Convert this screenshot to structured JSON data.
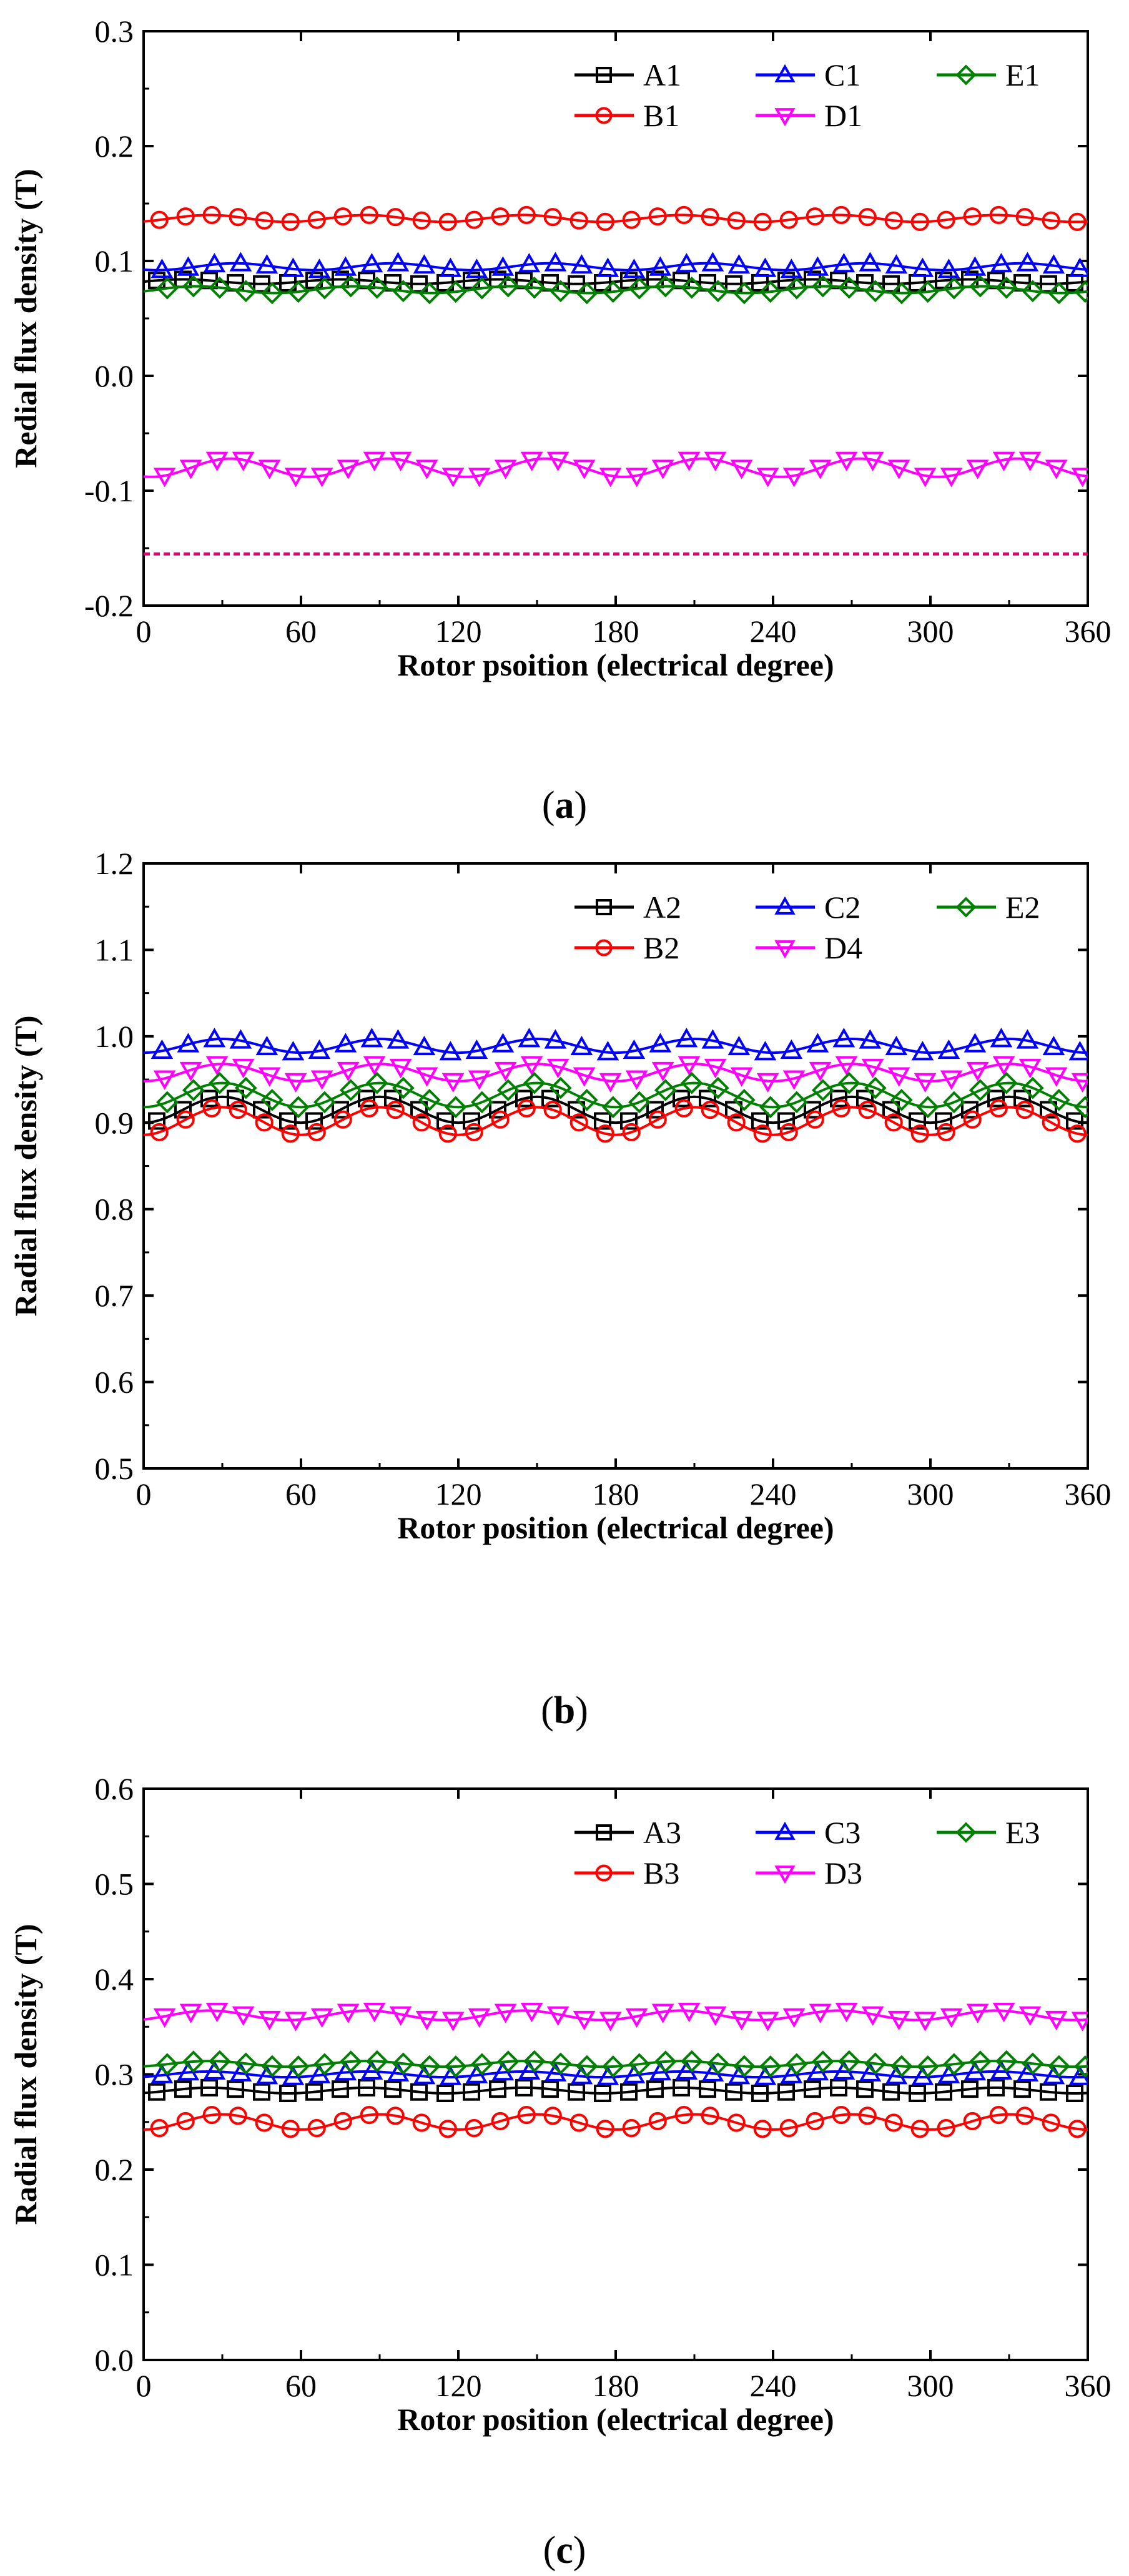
{
  "chart_data": [
    {
      "type": "line",
      "panel": "a",
      "caption_paren_open": "(",
      "caption_letter": "a",
      "caption_paren_close": ")",
      "xlabel": "Rotor psoition (electrical degree)",
      "ylabel": "Redial flux density (T)",
      "xlim": [
        0,
        360
      ],
      "ylim": [
        -0.2,
        0.3
      ],
      "xticks": [
        0,
        60,
        120,
        180,
        240,
        300,
        360
      ],
      "xtick_labels": [
        "0",
        "60",
        "120",
        "180",
        "240",
        "300",
        "360"
      ],
      "yticks": [
        -0.2,
        -0.1,
        0.0,
        0.1,
        0.2,
        0.3
      ],
      "ytick_labels": [
        "-0.2",
        "-0.1",
        "0.0",
        "0.1",
        "0.2",
        "0.3"
      ],
      "legend_position": "top-right",
      "reference_line": {
        "y": -0.155,
        "color": "#e4006e",
        "style": "dashed"
      },
      "series": [
        {
          "name": "A1",
          "color": "#000000",
          "marker": "square",
          "mean": 0.082,
          "amplitude": 0.002,
          "period": 60,
          "phase": 0
        },
        {
          "name": "B1",
          "color": "#ff0000",
          "marker": "circle",
          "mean": 0.137,
          "amplitude": 0.003,
          "period": 60,
          "phase": 10
        },
        {
          "name": "C1",
          "color": "#0000ff",
          "marker": "triangle-up",
          "mean": 0.095,
          "amplitude": 0.003,
          "period": 60,
          "phase": 20
        },
        {
          "name": "D1",
          "color": "#ff00ff",
          "marker": "triangle-down",
          "mean": -0.08,
          "amplitude": 0.008,
          "period": 60,
          "phase": 18
        },
        {
          "name": "E1",
          "color": "#008000",
          "marker": "diamond",
          "mean": 0.075,
          "amplitude": 0.003,
          "period": 60,
          "phase": 5
        }
      ]
    },
    {
      "type": "line",
      "panel": "b",
      "caption_paren_open": "(",
      "caption_letter": "b",
      "caption_paren_close": ")",
      "xlabel": "Rotor position (electrical degree)",
      "ylabel": "Radial flux density (T)",
      "xlim": [
        0,
        360
      ],
      "ylim": [
        0.5,
        1.2
      ],
      "xticks": [
        0,
        60,
        120,
        180,
        240,
        300,
        360
      ],
      "xtick_labels": [
        "0",
        "60",
        "120",
        "180",
        "240",
        "300",
        "360"
      ],
      "yticks": [
        0.5,
        0.6,
        0.7,
        0.8,
        0.9,
        1.0,
        1.1,
        1.2
      ],
      "ytick_labels": [
        "0.5",
        "0.6",
        "0.7",
        "0.8",
        "0.9",
        "1.0",
        "1.1",
        "1.2"
      ],
      "legend_position": "top-right",
      "series": [
        {
          "name": "A2",
          "color": "#000000",
          "marker": "square",
          "mean": 0.915,
          "amplitude": 0.015,
          "period": 60,
          "phase": 15
        },
        {
          "name": "B2",
          "color": "#ff0000",
          "marker": "circle",
          "mean": 0.902,
          "amplitude": 0.016,
          "period": 60,
          "phase": 15
        },
        {
          "name": "C2",
          "color": "#0000ff",
          "marker": "triangle-up",
          "mean": 0.989,
          "amplitude": 0.008,
          "period": 60,
          "phase": 15
        },
        {
          "name": "D4",
          "color": "#ff00ff",
          "marker": "triangle-down",
          "mean": 0.958,
          "amplitude": 0.01,
          "period": 60,
          "phase": 15
        },
        {
          "name": "E2",
          "color": "#008000",
          "marker": "diamond",
          "mean": 0.932,
          "amplitude": 0.014,
          "period": 60,
          "phase": 15
        }
      ]
    },
    {
      "type": "line",
      "panel": "c",
      "caption_paren_open": "(",
      "caption_letter": "c",
      "caption_paren_close": ")",
      "xlabel": "Rotor position (electrical degree)",
      "ylabel": "Radial flux density (T)",
      "xlim": [
        0,
        360
      ],
      "ylim": [
        0.0,
        0.6
      ],
      "xticks": [
        0,
        60,
        120,
        180,
        240,
        300,
        360
      ],
      "xtick_labels": [
        "0",
        "60",
        "120",
        "180",
        "240",
        "300",
        "360"
      ],
      "yticks": [
        0.0,
        0.1,
        0.2,
        0.3,
        0.4,
        0.5,
        0.6
      ],
      "ytick_labels": [
        "0.0",
        "0.1",
        "0.2",
        "0.3",
        "0.4",
        "0.5",
        "0.6"
      ],
      "legend_position": "top-right",
      "series": [
        {
          "name": "A3",
          "color": "#000000",
          "marker": "square",
          "mean": 0.283,
          "amplitude": 0.003,
          "period": 60,
          "phase": 10
        },
        {
          "name": "B3",
          "color": "#ff0000",
          "marker": "circle",
          "mean": 0.25,
          "amplitude": 0.008,
          "period": 60,
          "phase": 15
        },
        {
          "name": "C3",
          "color": "#0000ff",
          "marker": "triangle-up",
          "mean": 0.3,
          "amplitude": 0.003,
          "period": 60,
          "phase": 10
        },
        {
          "name": "D3",
          "color": "#ff00ff",
          "marker": "triangle-down",
          "mean": 0.362,
          "amplitude": 0.005,
          "period": 60,
          "phase": 10
        },
        {
          "name": "E3",
          "color": "#008000",
          "marker": "diamond",
          "mean": 0.311,
          "amplitude": 0.003,
          "period": 60,
          "phase": 10
        }
      ]
    }
  ]
}
